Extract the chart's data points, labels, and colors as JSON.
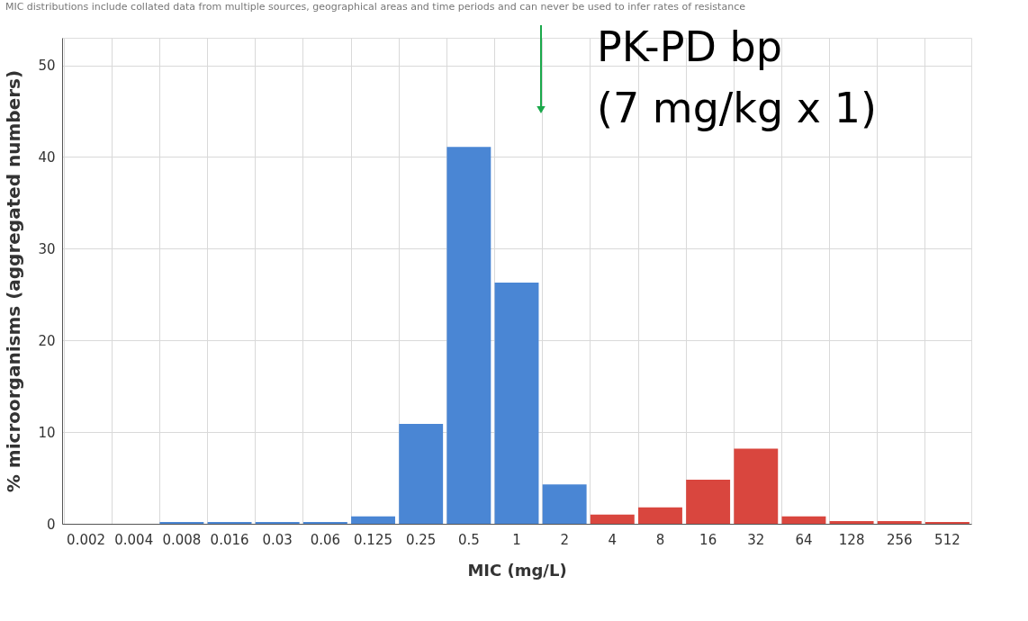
{
  "chart_data": {
    "type": "bar",
    "subtitle": "MIC distributions include collated data from multiple sources, geographical areas and time periods and can never be used to infer rates of resistance",
    "xlabel": "MIC (mg/L)",
    "ylabel": "% microorganisms (aggregated numbers)",
    "categories": [
      "0.002",
      "0.004",
      "0.008",
      "0.016",
      "0.03",
      "0.06",
      "0.125",
      "0.25",
      "0.5",
      "1",
      "2",
      "4",
      "8",
      "16",
      "32",
      "64",
      "128",
      "256",
      "512"
    ],
    "values": [
      0,
      0,
      0.2,
      0.2,
      0.2,
      0.2,
      0.8,
      10.9,
      41.1,
      26.3,
      4.3,
      1.0,
      1.8,
      4.8,
      8.2,
      0.8,
      0.3,
      0.3,
      0.2
    ],
    "colors": [
      "#4a86d4",
      "#4a86d4",
      "#4a86d4",
      "#4a86d4",
      "#4a86d4",
      "#4a86d4",
      "#4a86d4",
      "#4a86d4",
      "#4a86d4",
      "#4a86d4",
      "#4a86d4",
      "#d9463e",
      "#d9463e",
      "#d9463e",
      "#d9463e",
      "#d9463e",
      "#d9463e",
      "#d9463e",
      "#d9463e"
    ],
    "ylim": [
      0,
      53
    ],
    "yticks": [
      0,
      10,
      20,
      30,
      40,
      50
    ],
    "grid": true,
    "annotations": [
      "PK-PD bp\n(7 mg/kg x 1)"
    ]
  }
}
